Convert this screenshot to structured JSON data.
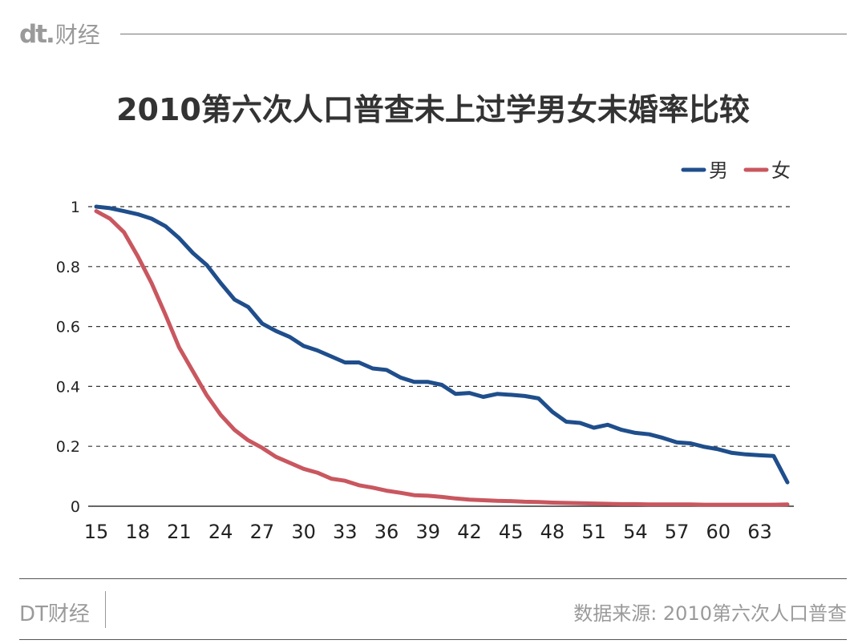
{
  "brand": {
    "logo_mark": "dt.",
    "logo_text": "财经",
    "footer_name": "DT财经"
  },
  "footer": {
    "source": "数据来源: 2010第六次人口普查"
  },
  "colors": {
    "male": "#1f4e8c",
    "female": "#c9575f",
    "grid": "#333333",
    "axis_text": "#222222"
  },
  "chart_data": {
    "type": "line",
    "title": "2010第六次人口普查未上过学男女未婚率比较",
    "xlabel": "",
    "ylabel": "",
    "xlim": [
      15,
      65
    ],
    "ylim": [
      0,
      1
    ],
    "x_ticks": [
      "15",
      "18",
      "21",
      "24",
      "27",
      "30",
      "33",
      "36",
      "39",
      "42",
      "45",
      "48",
      "51",
      "54",
      "57",
      "60",
      "63"
    ],
    "y_ticks": [
      "0",
      "0.2",
      "0.4",
      "0.6",
      "0.8",
      "1"
    ],
    "y_tick_values": [
      0,
      0.2,
      0.4,
      0.6,
      0.8,
      1
    ],
    "grid": "horizontal dashed",
    "legend_position": "top-right",
    "x": [
      15,
      16,
      17,
      18,
      19,
      20,
      21,
      22,
      23,
      24,
      25,
      26,
      27,
      28,
      29,
      30,
      31,
      32,
      33,
      34,
      35,
      36,
      37,
      38,
      39,
      40,
      41,
      42,
      43,
      44,
      45,
      46,
      47,
      48,
      49,
      50,
      51,
      52,
      53,
      54,
      55,
      56,
      57,
      58,
      59,
      60,
      61,
      62,
      63,
      64,
      65
    ],
    "series": [
      {
        "name": "男",
        "color": "#1f4e8c",
        "values": [
          1.0,
          0.995,
          0.985,
          0.975,
          0.96,
          0.935,
          0.895,
          0.845,
          0.805,
          0.745,
          0.69,
          0.665,
          0.61,
          0.585,
          0.565,
          0.535,
          0.52,
          0.5,
          0.48,
          0.48,
          0.46,
          0.455,
          0.43,
          0.415,
          0.415,
          0.405,
          0.375,
          0.378,
          0.365,
          0.375,
          0.372,
          0.368,
          0.36,
          0.315,
          0.282,
          0.278,
          0.262,
          0.272,
          0.255,
          0.245,
          0.24,
          0.228,
          0.213,
          0.21,
          0.198,
          0.19,
          0.178,
          0.173,
          0.17,
          0.168,
          0.08
        ]
      },
      {
        "name": "女",
        "color": "#c9575f",
        "values": [
          0.985,
          0.96,
          0.915,
          0.835,
          0.745,
          0.64,
          0.53,
          0.45,
          0.37,
          0.305,
          0.255,
          0.22,
          0.195,
          0.165,
          0.145,
          0.125,
          0.112,
          0.092,
          0.085,
          0.07,
          0.062,
          0.052,
          0.045,
          0.037,
          0.035,
          0.031,
          0.026,
          0.022,
          0.02,
          0.018,
          0.017,
          0.015,
          0.014,
          0.012,
          0.011,
          0.01,
          0.009,
          0.008,
          0.007,
          0.007,
          0.006,
          0.006,
          0.006,
          0.006,
          0.005,
          0.005,
          0.005,
          0.005,
          0.005,
          0.005,
          0.006
        ]
      }
    ]
  }
}
